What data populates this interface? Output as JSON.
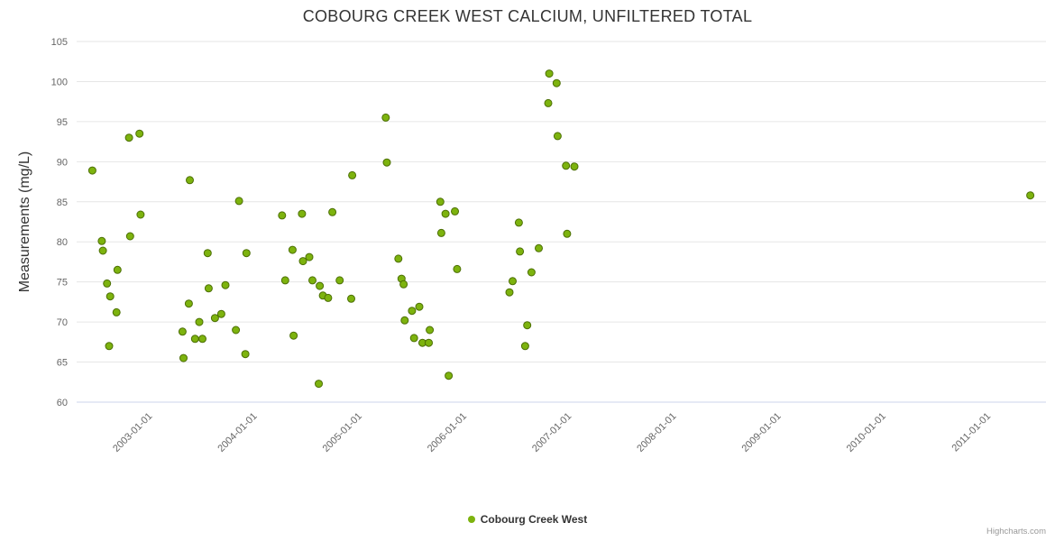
{
  "chart_data": {
    "type": "scatter",
    "title": "COBOURG CREEK WEST CALCIUM, UNFILTERED TOTAL",
    "xlabel": "",
    "ylabel": "Measurements (mg/L)",
    "ylim": [
      60,
      105
    ],
    "y_ticks": [
      60,
      65,
      70,
      75,
      80,
      85,
      90,
      95,
      100,
      105
    ],
    "xlim": [
      2002.3,
      2011.55
    ],
    "x_ticks": [
      {
        "value": 2003,
        "label": "2003-01-01"
      },
      {
        "value": 2004,
        "label": "2004-01-01"
      },
      {
        "value": 2005,
        "label": "2005-01-01"
      },
      {
        "value": 2006,
        "label": "2006-01-01"
      },
      {
        "value": 2007,
        "label": "2007-01-01"
      },
      {
        "value": 2008,
        "label": "2008-01-01"
      },
      {
        "value": 2009,
        "label": "2009-01-01"
      },
      {
        "value": 2010,
        "label": "2010-01-01"
      },
      {
        "value": 2011,
        "label": "2011-01-01"
      }
    ],
    "grid": "horizontal",
    "grid_color": "#e6e6e6",
    "axis_line_color": "#ccd6eb",
    "legend": {
      "position": "bottom-center",
      "items": [
        {
          "label": "Cobourg Creek West",
          "color": "#7db30e"
        }
      ]
    },
    "series": [
      {
        "name": "Cobourg Creek West",
        "color": "#7db30e",
        "marker_stroke": "#4c6f05",
        "marker_radius": 4,
        "points": [
          [
            2002.45,
            88.9
          ],
          [
            2002.54,
            80.1
          ],
          [
            2002.55,
            78.9
          ],
          [
            2002.59,
            74.8
          ],
          [
            2002.61,
            67.0
          ],
          [
            2002.62,
            73.2
          ],
          [
            2002.68,
            71.2
          ],
          [
            2002.69,
            76.5
          ],
          [
            2002.8,
            93.0
          ],
          [
            2002.81,
            80.7
          ],
          [
            2002.9,
            93.5
          ],
          [
            2002.91,
            83.4
          ],
          [
            2003.31,
            68.8
          ],
          [
            2003.32,
            65.5
          ],
          [
            2003.37,
            72.3
          ],
          [
            2003.38,
            87.7
          ],
          [
            2003.43,
            67.9
          ],
          [
            2003.47,
            70.0
          ],
          [
            2003.5,
            67.9
          ],
          [
            2003.55,
            78.6
          ],
          [
            2003.56,
            74.2
          ],
          [
            2003.62,
            70.5
          ],
          [
            2003.68,
            71.0
          ],
          [
            2003.72,
            74.6
          ],
          [
            2003.82,
            69.0
          ],
          [
            2003.85,
            85.1
          ],
          [
            2003.91,
            66.0
          ],
          [
            2003.92,
            78.6
          ],
          [
            2004.26,
            83.3
          ],
          [
            2004.29,
            75.2
          ],
          [
            2004.36,
            79.0
          ],
          [
            2004.37,
            68.3
          ],
          [
            2004.45,
            83.5
          ],
          [
            2004.46,
            77.6
          ],
          [
            2004.52,
            78.1
          ],
          [
            2004.55,
            75.2
          ],
          [
            2004.61,
            62.3
          ],
          [
            2004.62,
            74.5
          ],
          [
            2004.65,
            73.3
          ],
          [
            2004.7,
            73.0
          ],
          [
            2004.74,
            83.7
          ],
          [
            2004.81,
            75.2
          ],
          [
            2004.92,
            72.9
          ],
          [
            2004.93,
            88.3
          ],
          [
            2005.25,
            95.5
          ],
          [
            2005.26,
            89.9
          ],
          [
            2005.37,
            77.9
          ],
          [
            2005.4,
            75.4
          ],
          [
            2005.42,
            74.7
          ],
          [
            2005.43,
            70.2
          ],
          [
            2005.5,
            71.4
          ],
          [
            2005.52,
            68.0
          ],
          [
            2005.57,
            71.9
          ],
          [
            2005.6,
            67.4
          ],
          [
            2005.66,
            67.4
          ],
          [
            2005.67,
            69.0
          ],
          [
            2005.77,
            85.0
          ],
          [
            2005.78,
            81.1
          ],
          [
            2005.82,
            83.5
          ],
          [
            2005.85,
            63.3
          ],
          [
            2005.91,
            83.8
          ],
          [
            2005.93,
            76.6
          ],
          [
            2006.43,
            73.7
          ],
          [
            2006.46,
            75.1
          ],
          [
            2006.52,
            82.4
          ],
          [
            2006.53,
            78.8
          ],
          [
            2006.58,
            67.0
          ],
          [
            2006.6,
            69.6
          ],
          [
            2006.64,
            76.2
          ],
          [
            2006.71,
            79.2
          ],
          [
            2006.8,
            97.3
          ],
          [
            2006.81,
            101.0
          ],
          [
            2006.88,
            99.8
          ],
          [
            2006.89,
            93.2
          ],
          [
            2006.97,
            89.5
          ],
          [
            2006.98,
            81.0
          ],
          [
            2007.05,
            89.4
          ],
          [
            2011.4,
            85.8
          ]
        ]
      }
    ],
    "credits": "Highcharts.com"
  }
}
